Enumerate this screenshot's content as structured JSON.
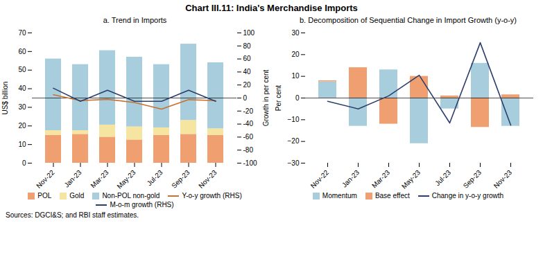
{
  "title": "Chart III.11: India's Merchandise Imports",
  "annotations": [
    "Sources: DGCI&S; and RBI staff estimates."
  ],
  "chart_data": [
    {
      "type": "bar",
      "title": "a. Trend in Imports",
      "stacked": true,
      "legend": "bottom",
      "categories": [
        "Nov-22",
        "Jan-23",
        "Mar-23",
        "May-23",
        "Jul-23",
        "Sep-23",
        "Nov-23"
      ],
      "series": [
        {
          "name": "POL",
          "color": "#F0A070",
          "values": [
            15.0,
            15.5,
            14.0,
            12.5,
            15.0,
            15.5,
            15.0
          ]
        },
        {
          "name": "Gold",
          "color": "#F5E5A0",
          "values": [
            2.5,
            2.0,
            6.5,
            7.0,
            4.0,
            7.5,
            3.5
          ]
        },
        {
          "name": "Non-POL non-gold",
          "color": "#A8CEDE",
          "values": [
            38.5,
            35.5,
            40.0,
            37.5,
            34.0,
            41.0,
            35.5
          ]
        },
        {
          "name": "Y-o-y growth (RHS)",
          "type": "line",
          "axis": "y2",
          "color": "#C87030",
          "values": [
            5.0,
            -4.0,
            -2.0,
            -7.0,
            -17.0,
            -2.5,
            -4.0
          ]
        },
        {
          "name": "M-o-m growth (RHS)",
          "type": "line",
          "axis": "y2",
          "color": "#2C3E6B",
          "values": [
            15.0,
            -5.0,
            12.0,
            -5.0,
            -5.0,
            12.0,
            -5.0
          ]
        }
      ],
      "ylabel": "US$ billion",
      "ylim": [
        0,
        70
      ],
      "yticks": [
        0,
        10,
        20,
        30,
        40,
        50,
        60,
        70
      ],
      "y2label": "Growth in per cent",
      "y2lim": [
        -100,
        100
      ],
      "y2ticks": [
        -100,
        -80,
        -60,
        -40,
        -20,
        0,
        20,
        40,
        60,
        80,
        100
      ]
    },
    {
      "type": "bar",
      "title": "b. Decomposition of Sequential Change in Import Growth (y-o-y)",
      "stacked": true,
      "legend": "bottom",
      "categories": [
        "Nov-22",
        "Jan-23",
        "Mar-23",
        "May-23",
        "Jul-23",
        "Sep-23",
        "Nov-23"
      ],
      "series": [
        {
          "name": "Momentum",
          "color": "#A8CEDE",
          "values": [
            7.5,
            -13.0,
            13.0,
            -21.0,
            -5.0,
            16.0,
            -13.0
          ]
        },
        {
          "name": "Base effect",
          "color": "#F0A070",
          "values": [
            0.5,
            14.0,
            -12.0,
            10.0,
            1.0,
            -13.5,
            1.5
          ]
        },
        {
          "name": "Change in y-o-y growth",
          "type": "line",
          "color": "#2C3E6B",
          "values": [
            -1.5,
            -5.0,
            1.0,
            10.5,
            -11.5,
            25.5,
            -12.5
          ]
        }
      ],
      "ylabel": "Per cent",
      "ylim": [
        -30,
        30
      ],
      "yticks": [
        -30,
        -20,
        -10,
        0,
        10,
        20,
        30
      ]
    }
  ]
}
